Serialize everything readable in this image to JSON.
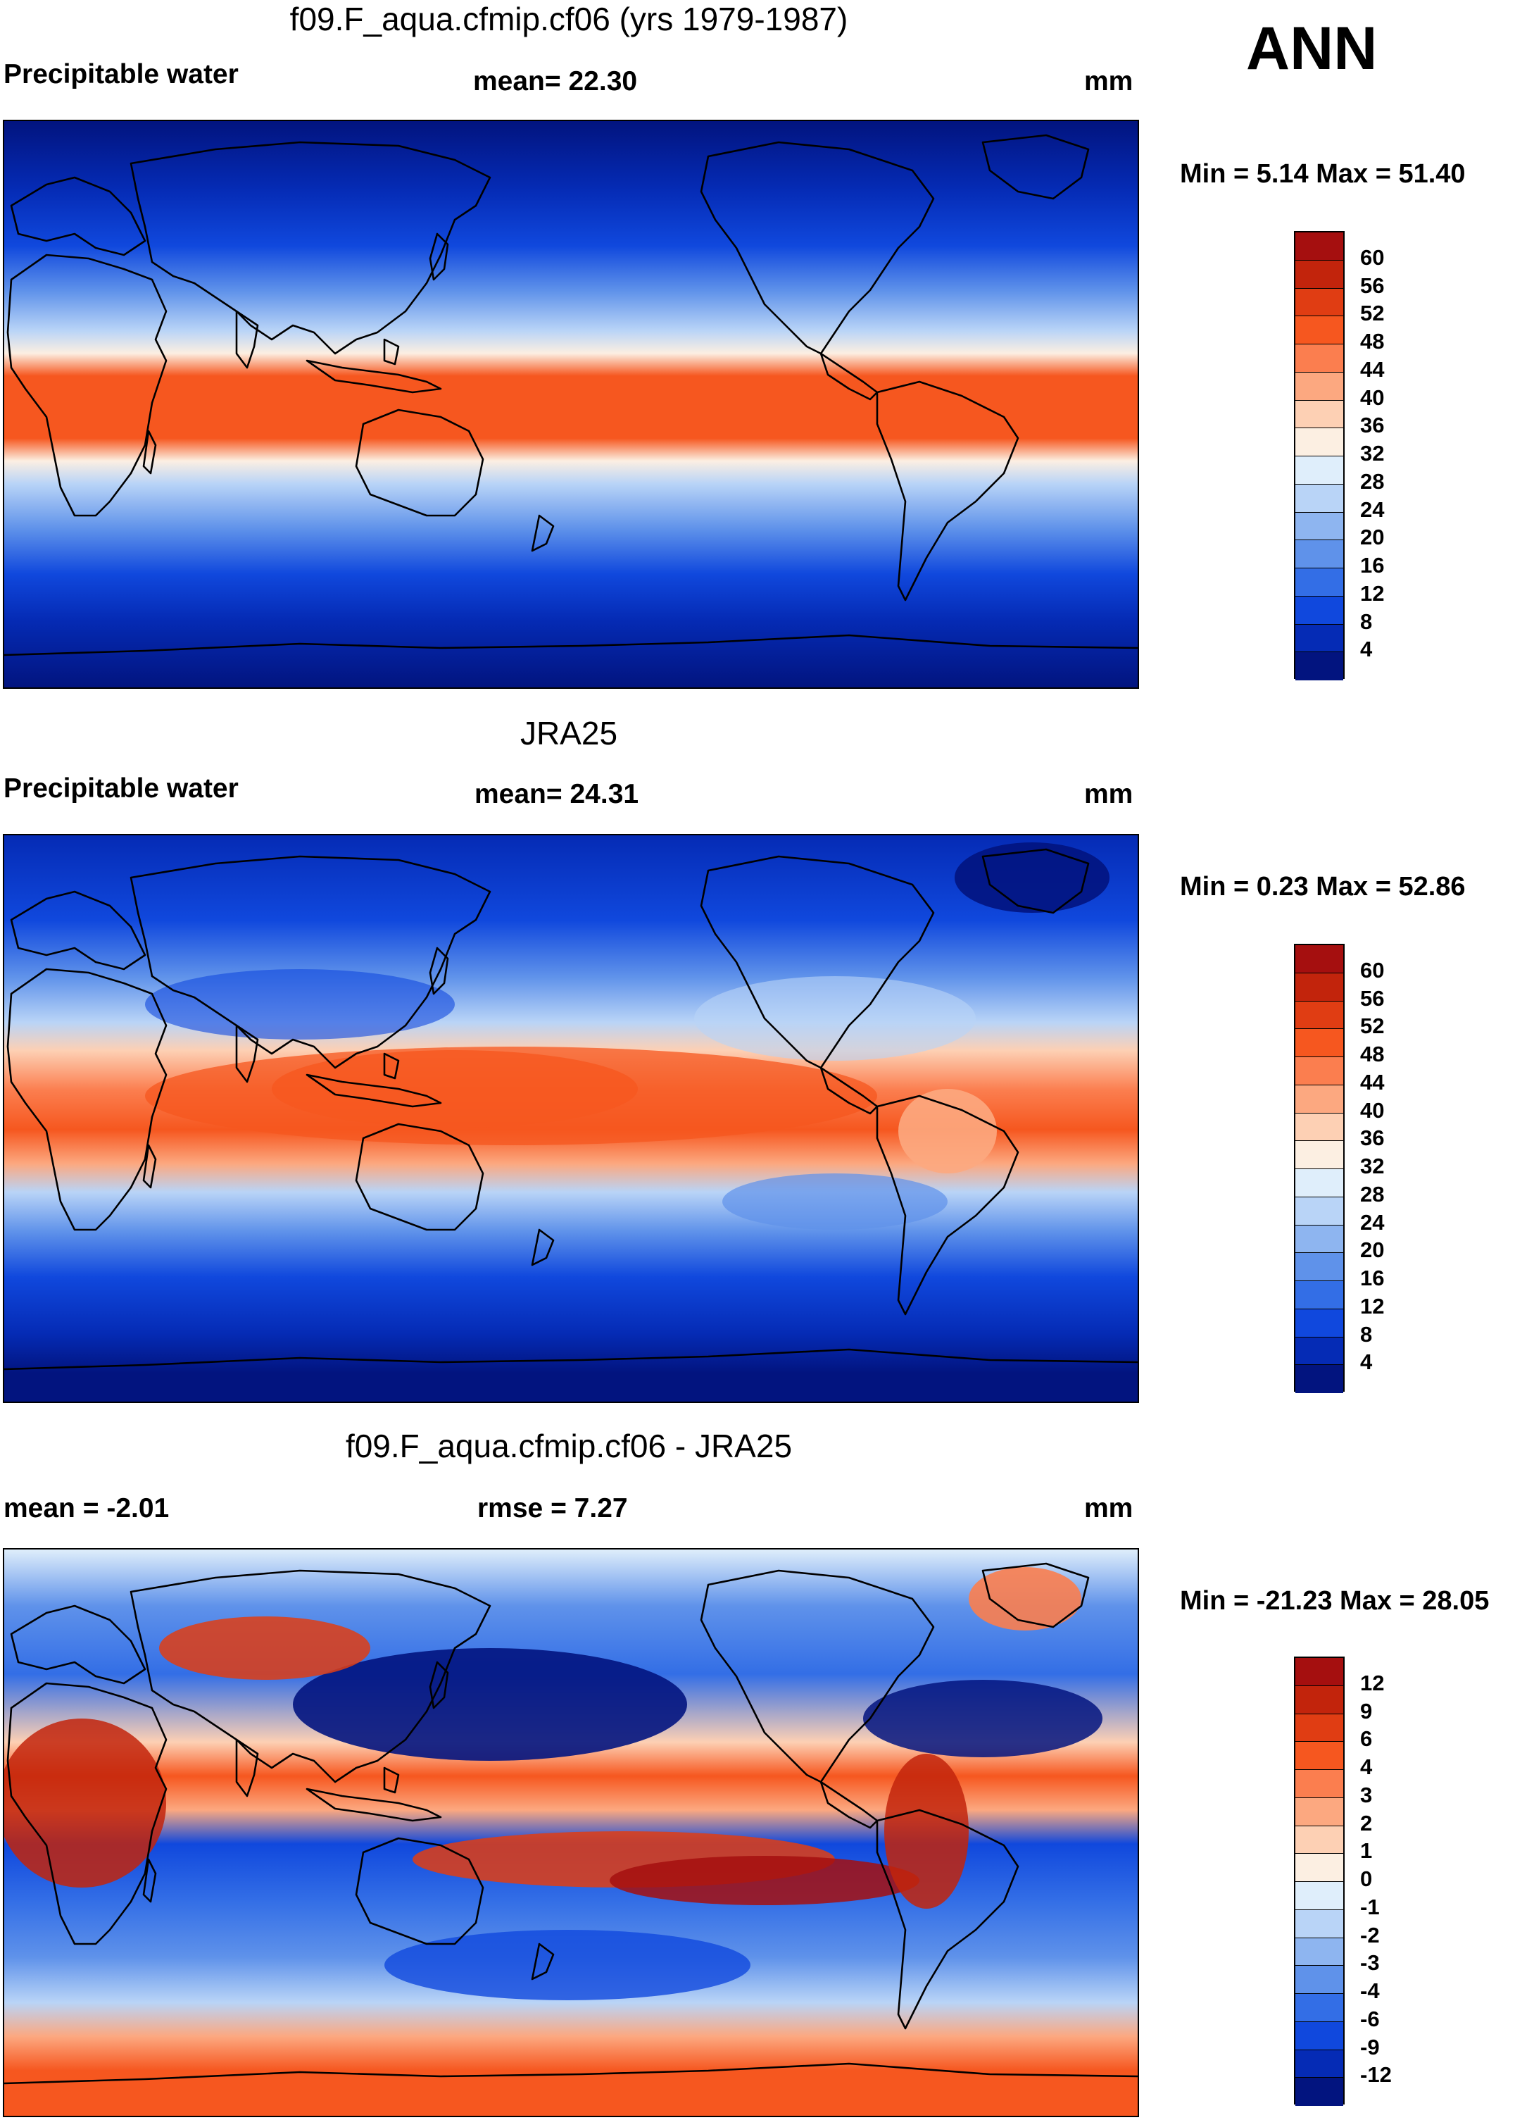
{
  "season": "ANN",
  "panels": [
    {
      "title": "f09.F_aqua.cfmip.cf06 (yrs 1979-1987)",
      "left_label": "Precipitable water",
      "center_label": "mean=  22.30",
      "units": "mm",
      "minmax": "Min =   5.14 Max =  51.40",
      "levels": [
        "60",
        "56",
        "52",
        "48",
        "44",
        "40",
        "36",
        "32",
        "28",
        "24",
        "20",
        "16",
        "12",
        "8",
        "4"
      ],
      "colors": [
        "#a50f0f",
        "#c2240c",
        "#e03d13",
        "#f6571f",
        "#fb7e4f",
        "#fca880",
        "#fdd0b4",
        "#fcefe2",
        "#dfeefb",
        "#b9d4f7",
        "#8eb5f0",
        "#5f92ea",
        "#336ee6",
        "#1048dd",
        "#052bb5",
        "#02147f"
      ]
    },
    {
      "title": "JRA25",
      "left_label": "Precipitable water",
      "center_label": "mean=  24.31",
      "units": "mm",
      "minmax": "Min =   0.23 Max =  52.86",
      "levels": [
        "60",
        "56",
        "52",
        "48",
        "44",
        "40",
        "36",
        "32",
        "28",
        "24",
        "20",
        "16",
        "12",
        "8",
        "4"
      ],
      "colors": [
        "#a50f0f",
        "#c2240c",
        "#e03d13",
        "#f6571f",
        "#fb7e4f",
        "#fca880",
        "#fdd0b4",
        "#fcefe2",
        "#dfeefb",
        "#b9d4f7",
        "#8eb5f0",
        "#5f92ea",
        "#336ee6",
        "#1048dd",
        "#052bb5",
        "#02147f"
      ]
    },
    {
      "title": "f09.F_aqua.cfmip.cf06 - JRA25",
      "left_label": "mean =  -2.01",
      "center_label": "rmse =    7.27",
      "units": "mm",
      "minmax": "Min = -21.23 Max =  28.05",
      "levels": [
        "12",
        "9",
        "6",
        "4",
        "3",
        "2",
        "1",
        "0",
        "-1",
        "-2",
        "-3",
        "-4",
        "-6",
        "-9",
        "-12"
      ],
      "colors": [
        "#a50f0f",
        "#c2240c",
        "#e03d13",
        "#f6571f",
        "#fb7e4f",
        "#fca880",
        "#fdd0b4",
        "#fcefe2",
        "#dfeefb",
        "#b9d4f7",
        "#8eb5f0",
        "#5f92ea",
        "#336ee6",
        "#1048dd",
        "#052bb5",
        "#02147f"
      ]
    }
  ]
}
